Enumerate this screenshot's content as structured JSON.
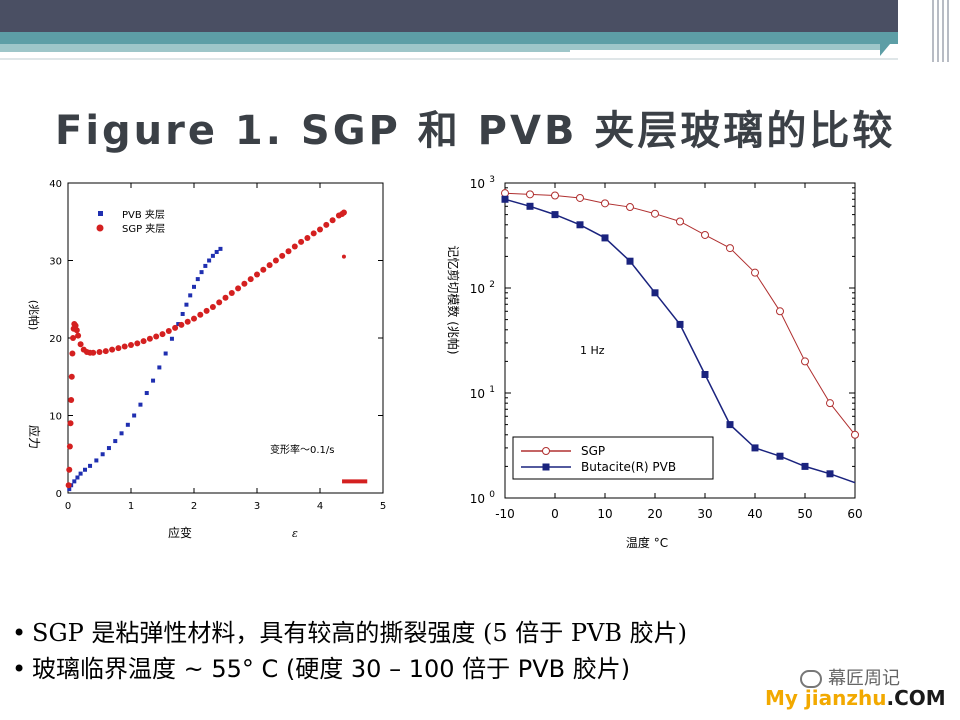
{
  "title": "Figure 1. SGP 和 PVB 夹层玻璃的比较",
  "bullets": [
    "SGP 是粘弹性材料，具有较高的撕裂强度 (5 倍于 PVB 胶片)",
    "玻璃临界温度 ~ 55° C (硬度 30 – 100 倍于 PVB 胶片)"
  ],
  "watermark": {
    "account": "幕匠周记",
    "name": "My jianzhu",
    "suffix": ".COM"
  },
  "chart_data": [
    {
      "type": "scatter",
      "title": "",
      "xlabel": "应变",
      "xlabel_unit": "ε",
      "ylabel": "应力",
      "ylabel_unit": "(兆帕)",
      "xlim": [
        0,
        5
      ],
      "ylim": [
        0,
        40
      ],
      "x_ticks": [
        "0",
        "1",
        "2",
        "3",
        "4",
        "5"
      ],
      "y_ticks": [
        "0",
        "10",
        "20",
        "30",
        "40"
      ],
      "legend_position": "top-left",
      "annotation": "变形率～0.1/s",
      "series": [
        {
          "name": "PVB 夹层",
          "color": "#1f2fb0",
          "marker": "square",
          "x": [
            0.02,
            0.05,
            0.1,
            0.15,
            0.2,
            0.27,
            0.35,
            0.45,
            0.55,
            0.65,
            0.75,
            0.85,
            0.95,
            1.05,
            1.15,
            1.25,
            1.35,
            1.45,
            1.55,
            1.65,
            1.75,
            1.82,
            1.88,
            1.94,
            2.0,
            2.06,
            2.12,
            2.18,
            2.24,
            2.3,
            2.36,
            2.42
          ],
          "y": [
            0.5,
            1.0,
            1.5,
            2.0,
            2.5,
            3.0,
            3.5,
            4.2,
            5.0,
            5.8,
            6.7,
            7.7,
            8.8,
            10.0,
            11.4,
            12.9,
            14.5,
            16.2,
            18.0,
            19.9,
            21.8,
            23.1,
            24.3,
            25.5,
            26.6,
            27.6,
            28.5,
            29.3,
            30.0,
            30.6,
            31.1,
            31.5
          ]
        },
        {
          "name": "SGP 夹层",
          "color": "#d42020",
          "marker": "circle",
          "x": [
            0.01,
            0.02,
            0.03,
            0.04,
            0.05,
            0.06,
            0.07,
            0.08,
            0.09,
            0.1,
            0.12,
            0.14,
            0.16,
            0.2,
            0.25,
            0.3,
            0.35,
            0.4,
            0.5,
            0.6,
            0.7,
            0.8,
            0.9,
            1.0,
            1.1,
            1.2,
            1.3,
            1.4,
            1.5,
            1.6,
            1.7,
            1.8,
            1.9,
            2.0,
            2.1,
            2.2,
            2.3,
            2.4,
            2.5,
            2.6,
            2.7,
            2.8,
            2.9,
            3.0,
            3.1,
            3.2,
            3.3,
            3.4,
            3.5,
            3.6,
            3.7,
            3.8,
            3.9,
            4.0,
            4.1,
            4.2,
            4.3,
            4.35,
            4.38
          ],
          "y": [
            1.0,
            3.0,
            6.0,
            9.0,
            12.0,
            15.0,
            18.0,
            20.0,
            21.2,
            21.8,
            21.6,
            21.0,
            20.3,
            19.2,
            18.5,
            18.2,
            18.1,
            18.1,
            18.2,
            18.3,
            18.5,
            18.7,
            18.9,
            19.1,
            19.3,
            19.6,
            19.9,
            20.2,
            20.5,
            20.9,
            21.3,
            21.7,
            22.1,
            22.5,
            23.0,
            23.5,
            24.0,
            24.6,
            25.2,
            25.8,
            26.4,
            27.0,
            27.6,
            28.2,
            28.8,
            29.4,
            30.0,
            30.6,
            31.2,
            31.8,
            32.4,
            32.9,
            33.5,
            34.0,
            34.6,
            35.2,
            35.8,
            36.0,
            36.2
          ]
        }
      ]
    },
    {
      "type": "line",
      "title": "",
      "xlabel": "温度 °C",
      "ylabel": "记忆剪切模数 (兆帕)",
      "xlim": [
        -10,
        60
      ],
      "ylim": [
        1,
        1000
      ],
      "y_scale": "log",
      "x_ticks": [
        "-10",
        "0",
        "10",
        "20",
        "30",
        "40",
        "50",
        "60"
      ],
      "y_ticks": [
        "10^0",
        "10^1",
        "10^2",
        "10^3"
      ],
      "legend_position": "bottom-right",
      "annotation": "1 Hz",
      "series": [
        {
          "name": "SGP",
          "color": "#b03030",
          "marker": "open-circle",
          "x": [
            -10,
            -5,
            0,
            5,
            10,
            15,
            20,
            25,
            30,
            35,
            40,
            45,
            50,
            55,
            60
          ],
          "y": [
            800,
            780,
            760,
            720,
            640,
            590,
            510,
            430,
            320,
            240,
            140,
            60,
            20,
            8,
            4
          ]
        },
        {
          "name": "Butacite(R) PVB",
          "color": "#1a237e",
          "marker": "filled-square",
          "x": [
            -10,
            -5,
            0,
            5,
            10,
            15,
            20,
            25,
            30,
            35,
            40,
            45,
            50,
            55,
            60
          ],
          "y": [
            700,
            600,
            500,
            400,
            300,
            180,
            90,
            45,
            15,
            5,
            3,
            2.5,
            2.0,
            1.7,
            1.4
          ]
        }
      ]
    }
  ]
}
